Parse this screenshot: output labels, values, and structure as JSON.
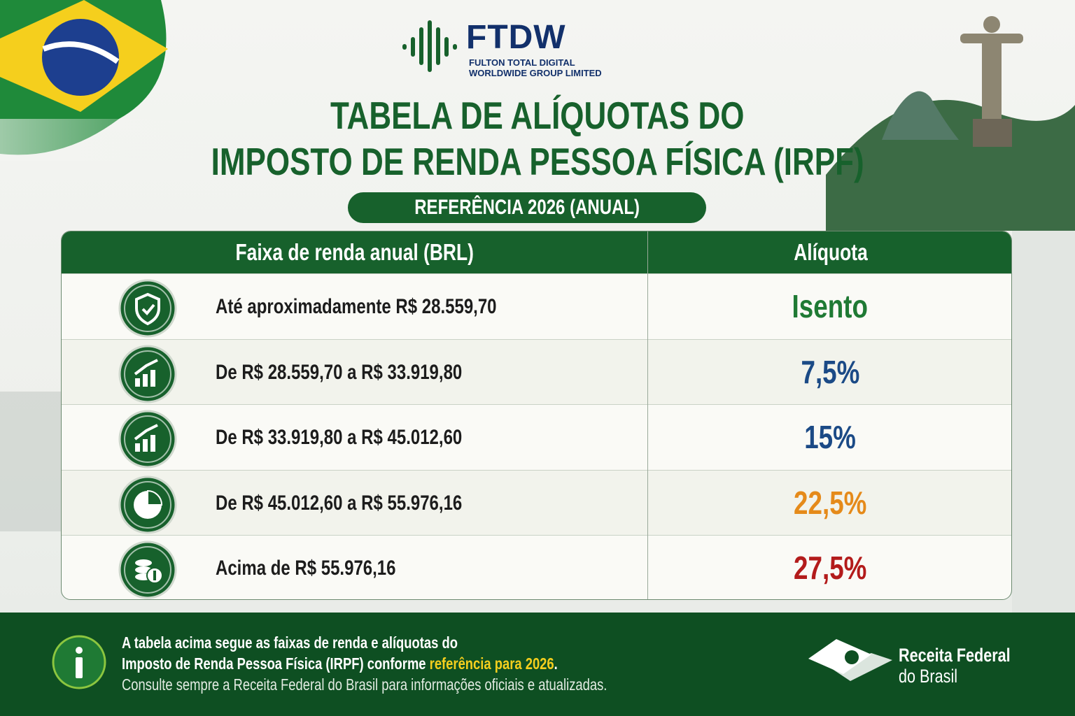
{
  "logo": {
    "name": "FTDW",
    "subtitle_lines": [
      "FULTON TOTAL DIGITAL",
      "WORLDWIDE GROUP LIMITED"
    ]
  },
  "title": {
    "lines": [
      "TABELA DE ALÍQUOTAS DO",
      "IMPOSTO DE RENDA PESSOA FÍSICA (IRPF)"
    ],
    "badge": "REFERÊNCIA 2026 (ANUAL)"
  },
  "table": {
    "headers": [
      "Faixa de renda anual (BRL)",
      "Alíquota"
    ],
    "rows": [
      [
        "Até aproximadamente R$ 28.559,70",
        "Isento"
      ],
      [
        "De R$ 28.559,70 a R$ 33.919,80",
        "7,5%"
      ],
      [
        "De R$ 33.919,80 a R$ 45.012,60",
        "15%"
      ],
      [
        "De R$ 45.012,60 a R$ 55.976,16",
        "22,5%"
      ],
      [
        "Acima de R$ 55.976,16",
        "27,5%"
      ]
    ]
  },
  "footer": {
    "line1": "A tabela acima segue as faixas de renda e alíquotas do",
    "line2": [
      "Imposto de Renda Pessoa Física (IRPF) conforme ",
      "referência para 2026",
      "."
    ],
    "line3": "Consulte sempre a Receita Federal do Brasil para informações oficiais e atualizadas.",
    "agency": [
      "Receita Federal",
      "do Brasil"
    ]
  }
}
